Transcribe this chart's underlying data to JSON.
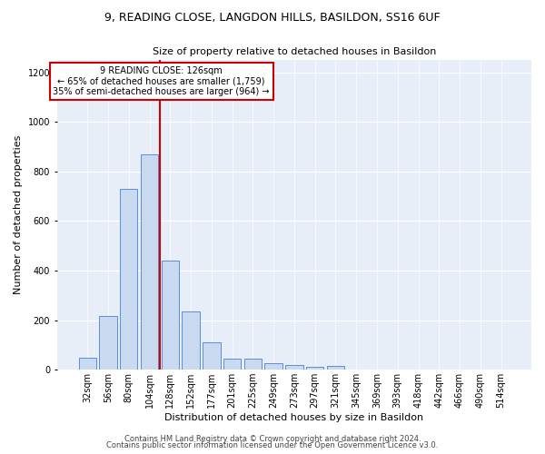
{
  "title1": "9, READING CLOSE, LANGDON HILLS, BASILDON, SS16 6UF",
  "title2": "Size of property relative to detached houses in Basildon",
  "xlabel": "Distribution of detached houses by size in Basildon",
  "ylabel": "Number of detached properties",
  "footer1": "Contains HM Land Registry data © Crown copyright and database right 2024.",
  "footer2": "Contains public sector information licensed under the Open Government Licence v3.0.",
  "annotation_line1": "9 READING CLOSE: 126sqm",
  "annotation_line2": "← 65% of detached houses are smaller (1,759)",
  "annotation_line3": "35% of semi-detached houses are larger (964) →",
  "bar_color": "#c8d9f0",
  "bar_edge_color": "#5b8dd9",
  "vline_color": "#cc0000",
  "background_color": "#e8eef8",
  "grid_color": "#ffffff",
  "categories": [
    "32sqm",
    "56sqm",
    "80sqm",
    "104sqm",
    "128sqm",
    "152sqm",
    "177sqm",
    "201sqm",
    "225sqm",
    "249sqm",
    "273sqm",
    "297sqm",
    "321sqm",
    "345sqm",
    "369sqm",
    "393sqm",
    "418sqm",
    "442sqm",
    "466sqm",
    "490sqm",
    "514sqm"
  ],
  "values": [
    50,
    215,
    730,
    870,
    440,
    235,
    110,
    45,
    45,
    25,
    20,
    10,
    15,
    0,
    0,
    0,
    0,
    0,
    0,
    0,
    0
  ],
  "ylim": [
    0,
    1250
  ],
  "yticks": [
    0,
    200,
    400,
    600,
    800,
    1000,
    1200
  ],
  "vline_x": 3.5,
  "title1_fontsize": 9,
  "title2_fontsize": 8,
  "xlabel_fontsize": 8,
  "ylabel_fontsize": 8,
  "tick_fontsize": 7,
  "annotation_fontsize": 7,
  "footer_fontsize": 6
}
